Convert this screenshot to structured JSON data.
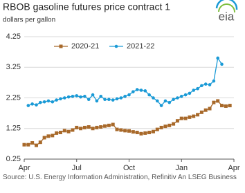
{
  "logo": "eia",
  "source": "Source: U.S. Energy Information Administration, Refinitiv An LSEG Business",
  "chart_data": {
    "type": "line",
    "title": "RBOB gasoline futures price contract 1",
    "subtitle": "dollars per gallon",
    "x": [
      0,
      1,
      2,
      3,
      4,
      5,
      6,
      7,
      8,
      9,
      10,
      11,
      12,
      13,
      14,
      15,
      16,
      17,
      18,
      19,
      20,
      21,
      22,
      23,
      24,
      25,
      26,
      27,
      28,
      29,
      30,
      31,
      32,
      33,
      34,
      35,
      36,
      37,
      38,
      39,
      40,
      41,
      42,
      43,
      44,
      45,
      46,
      47,
      48,
      49,
      50,
      51,
      52
    ],
    "xlim": [
      0,
      52
    ],
    "xticks": [
      {
        "value": 0,
        "label": "Apr"
      },
      {
        "value": 13,
        "label": "Jul"
      },
      {
        "value": 26,
        "label": "Oct"
      },
      {
        "value": 39,
        "label": "Jan"
      },
      {
        "value": 52,
        "label": "Apr"
      }
    ],
    "ylim": [
      0.25,
      4.25
    ],
    "yticks": [
      0.25,
      1.25,
      2.25,
      3.25,
      4.25
    ],
    "grid": true,
    "legend": "top",
    "series": [
      {
        "name": "2020-21",
        "color": "#a8692a",
        "marker": "square",
        "values": [
          0.72,
          0.72,
          0.78,
          0.7,
          0.8,
          0.95,
          1.0,
          1.02,
          1.1,
          1.12,
          1.18,
          1.15,
          1.2,
          1.28,
          1.25,
          1.28,
          1.3,
          1.25,
          1.28,
          1.3,
          1.33,
          1.35,
          1.38,
          1.22,
          1.2,
          1.18,
          1.17,
          1.14,
          1.12,
          1.08,
          1.1,
          1.12,
          1.15,
          1.22,
          1.28,
          1.32,
          1.35,
          1.4,
          1.5,
          1.58,
          1.58,
          1.62,
          1.65,
          1.7,
          1.78,
          1.85,
          1.9,
          2.1,
          2.15,
          2.0,
          1.98,
          2.0,
          null
        ]
      },
      {
        "name": "2021-22",
        "color": "#1a9ad6",
        "marker": "circle",
        "values": [
          null,
          2.0,
          2.05,
          2.02,
          2.1,
          2.12,
          2.15,
          2.12,
          2.18,
          2.22,
          2.25,
          2.28,
          2.3,
          2.32,
          2.28,
          2.3,
          2.2,
          2.35,
          2.15,
          2.3,
          2.2,
          2.2,
          2.18,
          2.22,
          2.25,
          2.3,
          2.35,
          2.45,
          2.52,
          2.5,
          2.48,
          2.35,
          2.25,
          2.15,
          2.0,
          2.15,
          2.1,
          2.2,
          2.25,
          2.3,
          2.35,
          2.4,
          2.5,
          2.55,
          2.65,
          2.7,
          2.68,
          2.8,
          3.55,
          3.35,
          null,
          null,
          null
        ]
      }
    ]
  }
}
